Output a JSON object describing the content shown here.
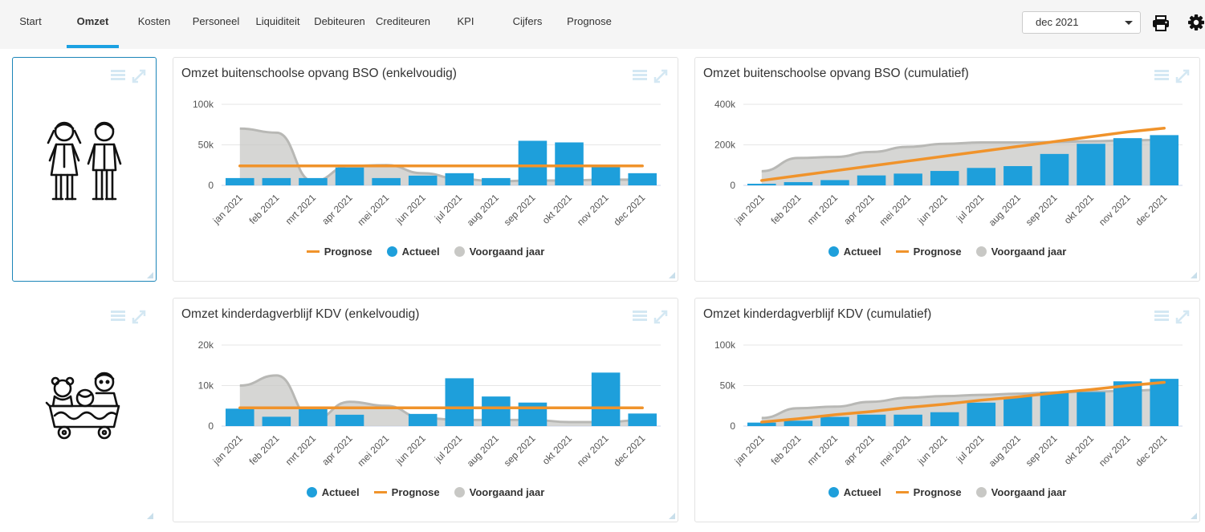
{
  "nav": {
    "tabs": [
      {
        "label": "Start",
        "active": false
      },
      {
        "label": "Omzet",
        "active": true
      },
      {
        "label": "Kosten",
        "active": false
      },
      {
        "label": "Personeel",
        "active": false
      },
      {
        "label": "Liquiditeit",
        "active": false
      },
      {
        "label": "Debiteuren",
        "active": false
      },
      {
        "label": "Crediteuren",
        "active": false
      },
      {
        "label": "KPI",
        "active": false
      },
      {
        "label": "Cijfers",
        "active": false
      },
      {
        "label": "Prognose",
        "active": false
      }
    ],
    "period": "dec 2021",
    "print_icon": "printer-icon",
    "settings_icon": "gear-icon"
  },
  "colors": {
    "actueel": "#1e9fdb",
    "prognose": "#f0932b",
    "voorgaand": "#c8c8c5",
    "accent": "#1ba1e2"
  },
  "tiles": [
    {
      "icon": "children-icon"
    },
    {
      "icon": "toys-wagon-icon"
    }
  ],
  "legend_labels": {
    "actueel": "Actueel",
    "prognose": "Prognose",
    "voorgaand": "Voorgaand jaar"
  },
  "chart_data": [
    {
      "type": "bar",
      "title": "Omzet buitenschoolse opvang BSO (enkelvoudig)",
      "categories": [
        "jan 2021",
        "feb 2021",
        "mrt 2021",
        "apr 2021",
        "mei 2021",
        "jun 2021",
        "jul 2021",
        "aug 2021",
        "sep 2021",
        "okt 2021",
        "nov 2021",
        "dec 2021"
      ],
      "ylim": [
        0,
        100000
      ],
      "yticks": [
        "0",
        "50k",
        "100k"
      ],
      "legend_order": [
        "prognose",
        "actueel",
        "voorgaand"
      ],
      "series": [
        {
          "name": "Actueel",
          "type": "bar",
          "values": [
            9000,
            9000,
            9000,
            22000,
            9000,
            12000,
            15000,
            9000,
            55000,
            53000,
            25000,
            15000
          ]
        },
        {
          "name": "Prognose",
          "type": "line",
          "values": [
            24000,
            24000,
            24000,
            24000,
            24000,
            24000,
            24000,
            24000,
            24000,
            24000,
            24000,
            24000
          ]
        },
        {
          "name": "Voorgaand jaar",
          "type": "area",
          "values": [
            70000,
            65000,
            5000,
            24000,
            25000,
            15000,
            8000,
            5000,
            6000,
            6000,
            7000,
            7000
          ]
        }
      ]
    },
    {
      "type": "bar",
      "title": "Omzet buitenschoolse opvang BSO (cumulatief)",
      "categories": [
        "jan 2021",
        "feb 2021",
        "mrt 2021",
        "apr 2021",
        "mei 2021",
        "jun 2021",
        "jul 2021",
        "aug 2021",
        "sep 2021",
        "okt 2021",
        "nov 2021",
        "dec 2021"
      ],
      "ylim": [
        0,
        400000
      ],
      "yticks": [
        "0",
        "200k",
        "400k"
      ],
      "legend_order": [
        "actueel",
        "prognose",
        "voorgaand"
      ],
      "series": [
        {
          "name": "Actueel",
          "type": "bar",
          "values": [
            8000,
            16000,
            26000,
            49000,
            58000,
            71000,
            86000,
            95000,
            155000,
            205000,
            233000,
            248000
          ]
        },
        {
          "name": "Prognose",
          "type": "line",
          "values": [
            24000,
            48000,
            72000,
            96000,
            120000,
            144000,
            168000,
            192000,
            216000,
            240000,
            264000,
            282000
          ]
        },
        {
          "name": "Voorgaand jaar",
          "type": "area",
          "values": [
            70000,
            135000,
            140000,
            165000,
            190000,
            205000,
            212000,
            212000,
            214000,
            218000,
            222000,
            225000
          ]
        }
      ]
    },
    {
      "type": "bar",
      "title": "Omzet kinderdagverblijf KDV (enkelvoudig)",
      "categories": [
        "jan 2021",
        "feb 2021",
        "mrt 2021",
        "apr 2021",
        "mei 2021",
        "jun 2021",
        "jul 2021",
        "aug 2021",
        "sep 2021",
        "okt 2021",
        "nov 2021",
        "dec 2021"
      ],
      "ylim": [
        0,
        20000
      ],
      "yticks": [
        "0",
        "10k",
        "20k"
      ],
      "legend_order": [
        "actueel",
        "prognose",
        "voorgaand"
      ],
      "series": [
        {
          "name": "Actueel",
          "type": "bar",
          "values": [
            4300,
            2300,
            4700,
            2800,
            0,
            3000,
            11800,
            7300,
            5800,
            0,
            13200,
            3100
          ]
        },
        {
          "name": "Prognose",
          "type": "line",
          "values": [
            4500,
            4500,
            4500,
            4500,
            4500,
            4500,
            4500,
            4500,
            4500,
            4500,
            4500,
            4500
          ]
        },
        {
          "name": "Voorgaand jaar",
          "type": "area",
          "values": [
            10000,
            12500,
            1500,
            6000,
            5000,
            2000,
            1500,
            1500,
            1500,
            1000,
            1000,
            1500
          ]
        }
      ]
    },
    {
      "type": "bar",
      "title": "Omzet kinderdagverblijf KDV (cumulatief)",
      "categories": [
        "jan 2021",
        "feb 2021",
        "mrt 2021",
        "apr 2021",
        "mei 2021",
        "jun 2021",
        "jul 2021",
        "aug 2021",
        "sep 2021",
        "okt 2021",
        "nov 2021",
        "dec 2021"
      ],
      "ylim": [
        0,
        100000
      ],
      "yticks": [
        "0",
        "50k",
        "100k"
      ],
      "legend_order": [
        "actueel",
        "prognose",
        "voorgaand"
      ],
      "series": [
        {
          "name": "Actueel",
          "type": "bar",
          "values": [
            4300,
            6600,
            11300,
            14100,
            14100,
            17100,
            28900,
            36200,
            42000,
            42000,
            55200,
            58300
          ]
        },
        {
          "name": "Prognose",
          "type": "line",
          "values": [
            5000,
            9000,
            14000,
            18000,
            23000,
            27000,
            32000,
            36000,
            41000,
            45000,
            50000,
            54000
          ]
        },
        {
          "name": "Voorgaand jaar",
          "type": "area",
          "values": [
            10000,
            22000,
            24000,
            30000,
            35000,
            37000,
            38500,
            40000,
            41500,
            42500,
            43500,
            45000
          ]
        }
      ]
    }
  ]
}
